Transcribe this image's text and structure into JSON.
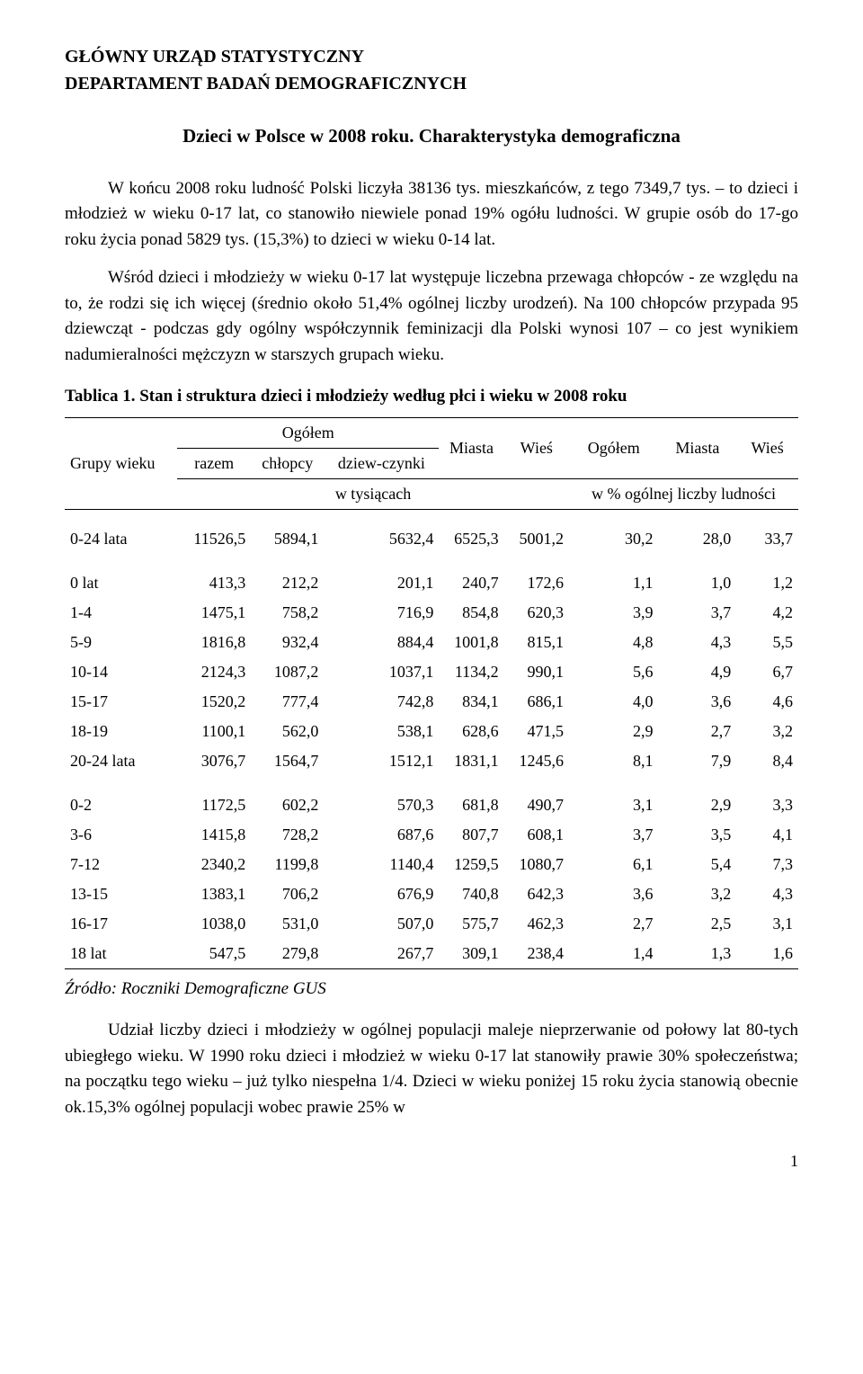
{
  "header": {
    "line1": "GŁÓWNY URZĄD STATYSTYCZNY",
    "line2": "DEPARTAMENT BADAŃ DEMOGRAFICZNYCH"
  },
  "title": "Dzieci w Polsce w 2008 roku. Charakterystyka demograficzna",
  "paragraphs": {
    "p1": "W końcu 2008 roku ludność Polski liczyła 38136 tys. mieszkańców, z tego 7349,7 tys. – to dzieci i młodzież w wieku 0-17 lat, co stanowiło niewiele ponad 19% ogółu ludności. W grupie osób do 17-go roku życia ponad 5829 tys. (15,3%) to dzieci w wieku 0-14 lat.",
    "p2": "Wśród dzieci i młodzieży w wieku 0-17 lat występuje liczebna przewaga chłopców - ze względu na to, że rodzi się ich więcej (średnio około 51,4% ogólnej liczby urodzeń). Na 100 chłopców przypada 95 dziewcząt - podczas gdy ogólny współczynnik feminizacji dla Polski wynosi 107 – co jest wynikiem nadumieralności mężczyzn w starszych grupach wieku.",
    "p3": "Udział liczby dzieci i młodzieży w ogólnej populacji maleje nieprzerwanie od połowy lat 80-tych ubiegłego wieku. W 1990 roku dzieci i młodzież w wieku 0-17 lat stanowiły prawie 30% społeczeństwa; na początku tego wieku – już tylko niespełna 1/4. Dzieci w wieku poniżej 15 roku życia stanowią obecnie ok.15,3% ogólnej populacji wobec prawie 25% w"
  },
  "table": {
    "caption": "Tablica 1. Stan i struktura dzieci i młodzieży według płci i wieku w 2008 roku",
    "headers": {
      "grupy": "Grupy wieku",
      "ogolem_group": "Ogółem",
      "razem": "razem",
      "chlopcy": "chłopcy",
      "dziewczynki": "dziew-czynki",
      "miasta": "Miasta",
      "wies": "Wieś",
      "ogolem": "Ogółem",
      "miasta2": "Miasta",
      "wies2": "Wieś",
      "w_tys": "w tysiącach",
      "w_pct": "w % ogólnej liczby ludności"
    },
    "section1": [
      {
        "label": "0-24 lata",
        "razem": "11526,5",
        "chlopcy": "5894,1",
        "dziew": "5632,4",
        "miasta": "6525,3",
        "wies": "5001,2",
        "pct_o": "30,2",
        "pct_m": "28,0",
        "pct_w": "33,7"
      }
    ],
    "section2": [
      {
        "label": "0 lat",
        "razem": "413,3",
        "chlopcy": "212,2",
        "dziew": "201,1",
        "miasta": "240,7",
        "wies": "172,6",
        "pct_o": "1,1",
        "pct_m": "1,0",
        "pct_w": "1,2"
      },
      {
        "label": "1-4",
        "razem": "1475,1",
        "chlopcy": "758,2",
        "dziew": "716,9",
        "miasta": "854,8",
        "wies": "620,3",
        "pct_o": "3,9",
        "pct_m": "3,7",
        "pct_w": "4,2"
      },
      {
        "label": "5-9",
        "razem": "1816,8",
        "chlopcy": "932,4",
        "dziew": "884,4",
        "miasta": "1001,8",
        "wies": "815,1",
        "pct_o": "4,8",
        "pct_m": "4,3",
        "pct_w": "5,5"
      },
      {
        "label": "10-14",
        "razem": "2124,3",
        "chlopcy": "1087,2",
        "dziew": "1037,1",
        "miasta": "1134,2",
        "wies": "990,1",
        "pct_o": "5,6",
        "pct_m": "4,9",
        "pct_w": "6,7"
      },
      {
        "label": "15-17",
        "razem": "1520,2",
        "chlopcy": "777,4",
        "dziew": "742,8",
        "miasta": "834,1",
        "wies": "686,1",
        "pct_o": "4,0",
        "pct_m": "3,6",
        "pct_w": "4,6"
      },
      {
        "label": "18-19",
        "razem": "1100,1",
        "chlopcy": "562,0",
        "dziew": "538,1",
        "miasta": "628,6",
        "wies": "471,5",
        "pct_o": "2,9",
        "pct_m": "2,7",
        "pct_w": "3,2"
      },
      {
        "label": "20-24 lata",
        "razem": "3076,7",
        "chlopcy": "1564,7",
        "dziew": "1512,1",
        "miasta": "1831,1",
        "wies": "1245,6",
        "pct_o": "8,1",
        "pct_m": "7,9",
        "pct_w": "8,4"
      }
    ],
    "section3": [
      {
        "label": "0-2",
        "razem": "1172,5",
        "chlopcy": "602,2",
        "dziew": "570,3",
        "miasta": "681,8",
        "wies": "490,7",
        "pct_o": "3,1",
        "pct_m": "2,9",
        "pct_w": "3,3"
      },
      {
        "label": "3-6",
        "razem": "1415,8",
        "chlopcy": "728,2",
        "dziew": "687,6",
        "miasta": "807,7",
        "wies": "608,1",
        "pct_o": "3,7",
        "pct_m": "3,5",
        "pct_w": "4,1"
      },
      {
        "label": "7-12",
        "razem": "2340,2",
        "chlopcy": "1199,8",
        "dziew": "1140,4",
        "miasta": "1259,5",
        "wies": "1080,7",
        "pct_o": "6,1",
        "pct_m": "5,4",
        "pct_w": "7,3"
      },
      {
        "label": "13-15",
        "razem": "1383,1",
        "chlopcy": "706,2",
        "dziew": "676,9",
        "miasta": "740,8",
        "wies": "642,3",
        "pct_o": "3,6",
        "pct_m": "3,2",
        "pct_w": "4,3"
      },
      {
        "label": "16-17",
        "razem": "1038,0",
        "chlopcy": "531,0",
        "dziew": "507,0",
        "miasta": "575,7",
        "wies": "462,3",
        "pct_o": "2,7",
        "pct_m": "2,5",
        "pct_w": "3,1"
      },
      {
        "label": "18 lat",
        "razem": "547,5",
        "chlopcy": "279,8",
        "dziew": "267,7",
        "miasta": "309,1",
        "wies": "238,4",
        "pct_o": "1,4",
        "pct_m": "1,3",
        "pct_w": "1,6"
      }
    ]
  },
  "source": "Źródło: Roczniki Demograficzne GUS",
  "page_number": "1",
  "colors": {
    "text": "#000000",
    "background": "#ffffff",
    "border": "#000000"
  },
  "typography": {
    "font_family": "Times New Roman",
    "body_size_pt": 14,
    "title_size_pt": 16
  }
}
